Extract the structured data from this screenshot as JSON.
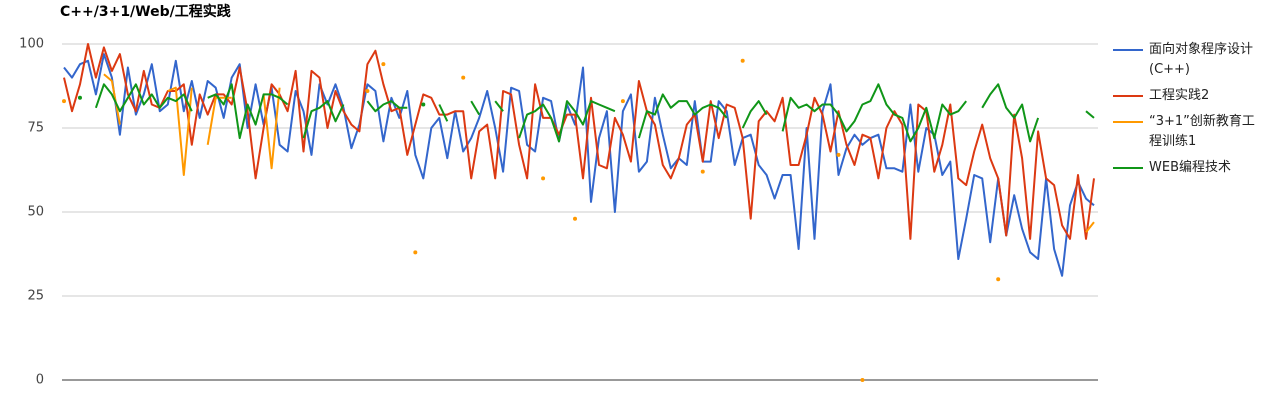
{
  "chart_data": {
    "type": "line",
    "title": "C++/3+1/Web/工程实践",
    "ylim": [
      0,
      100
    ],
    "yticks": [
      0,
      25,
      50,
      75,
      100
    ],
    "grid": true,
    "legend": "right",
    "series": [
      {
        "name": "面向对象程序设计(C++)",
        "color": "#3366cc",
        "values": [
          93,
          90,
          94,
          95,
          85,
          97,
          90,
          73,
          93,
          79,
          85,
          94,
          80,
          82,
          95,
          80,
          89,
          78,
          89,
          87,
          78,
          90,
          94,
          75,
          88,
          76,
          87,
          70,
          68,
          86,
          80,
          67,
          88,
          82,
          88,
          81,
          69,
          76,
          88,
          86,
          71,
          84,
          78,
          86,
          67,
          60,
          75,
          78,
          66,
          80,
          68,
          72,
          78,
          86,
          75,
          62,
          87,
          86,
          70,
          68,
          84,
          83,
          71,
          82,
          76,
          93,
          53,
          72,
          80,
          50,
          80,
          85,
          62,
          65,
          84,
          73,
          63,
          66,
          64,
          83,
          65,
          65,
          83,
          80,
          64,
          72,
          73,
          64,
          61,
          54,
          61,
          61,
          39,
          75,
          42,
          80,
          88,
          61,
          69,
          73,
          70,
          72,
          73,
          63,
          63,
          62,
          82,
          62,
          75,
          73,
          61,
          65,
          36,
          48,
          61,
          60,
          41,
          60,
          43,
          55,
          45,
          38,
          36,
          60,
          39,
          31,
          52,
          59,
          54,
          52
        ]
      },
      {
        "name": "工程实践2",
        "color": "#dc3912",
        "values": [
          90,
          80,
          88,
          100,
          90,
          99,
          92,
          97,
          85,
          80,
          92,
          82,
          81,
          86,
          86,
          88,
          70,
          85,
          79,
          85,
          85,
          82,
          93,
          80,
          60,
          75,
          88,
          85,
          80,
          92,
          68,
          92,
          90,
          75,
          86,
          80,
          76,
          74,
          94,
          98,
          88,
          80,
          81,
          67,
          76,
          85,
          84,
          79,
          79,
          80,
          80,
          60,
          74,
          76,
          60,
          86,
          85,
          70,
          60,
          88,
          78,
          78,
          73,
          79,
          79,
          60,
          84,
          64,
          63,
          78,
          73,
          65,
          89,
          80,
          76,
          64,
          60,
          66,
          76,
          79,
          65,
          83,
          72,
          82,
          81,
          72,
          48,
          77,
          80,
          77,
          84,
          64,
          64,
          73,
          84,
          79,
          68,
          80,
          70,
          64,
          73,
          72,
          60,
          75,
          80,
          76,
          42,
          82,
          80,
          62,
          70,
          82,
          60,
          58,
          68,
          76,
          66,
          60,
          43,
          79,
          66,
          42,
          74,
          60,
          58,
          46,
          42,
          61,
          42,
          60
        ]
      },
      {
        "name": "“3+1”创新教育工程训练1",
        "color": "#ff9900",
        "values": [
          83,
          null,
          null,
          null,
          null,
          91,
          89,
          76,
          null,
          null,
          null,
          null,
          null,
          86,
          87,
          61,
          87,
          null,
          70,
          84,
          84,
          84,
          null,
          null,
          null,
          85,
          63,
          87,
          null,
          null,
          null,
          null,
          null,
          null,
          null,
          null,
          null,
          null,
          86,
          null,
          94,
          null,
          null,
          null,
          38,
          null,
          null,
          null,
          null,
          null,
          90,
          null,
          null,
          null,
          null,
          null,
          null,
          null,
          null,
          null,
          60,
          null,
          null,
          null,
          48,
          null,
          null,
          null,
          null,
          null,
          83,
          null,
          null,
          null,
          null,
          null,
          null,
          null,
          null,
          null,
          62,
          null,
          null,
          null,
          null,
          95,
          null,
          null,
          null,
          null,
          null,
          null,
          null,
          null,
          null,
          null,
          null,
          67,
          null,
          null,
          0,
          null,
          null,
          null,
          null,
          null,
          null,
          null,
          null,
          null,
          null,
          null,
          null,
          null,
          null,
          null,
          null,
          30,
          null,
          null,
          null,
          null,
          null,
          null,
          null,
          null,
          null,
          null,
          44,
          47
        ]
      },
      {
        "name": "WEB编程技术",
        "color": "#109618",
        "values": [
          null,
          null,
          84,
          null,
          81,
          88,
          85,
          80,
          84,
          88,
          82,
          85,
          81,
          84,
          83,
          85,
          80,
          null,
          84,
          85,
          82,
          88,
          72,
          82,
          76,
          85,
          85,
          84,
          82,
          null,
          72,
          80,
          81,
          83,
          77,
          82,
          null,
          null,
          83,
          80,
          82,
          83,
          81,
          81,
          null,
          82,
          null,
          82,
          77,
          null,
          null,
          83,
          79,
          null,
          83,
          80,
          null,
          72,
          79,
          80,
          82,
          78,
          71,
          83,
          80,
          76,
          83,
          82,
          81,
          80,
          null,
          null,
          72,
          80,
          79,
          85,
          81,
          83,
          83,
          79,
          81,
          82,
          81,
          78,
          null,
          75,
          80,
          83,
          79,
          null,
          74,
          84,
          81,
          82,
          80,
          82,
          82,
          79,
          74,
          77,
          82,
          83,
          88,
          82,
          79,
          78,
          71,
          75,
          81,
          72,
          82,
          79,
          80,
          83,
          null,
          81,
          85,
          88,
          81,
          78,
          82,
          71,
          78,
          null,
          null,
          null,
          null,
          null,
          80,
          78
        ]
      }
    ]
  }
}
